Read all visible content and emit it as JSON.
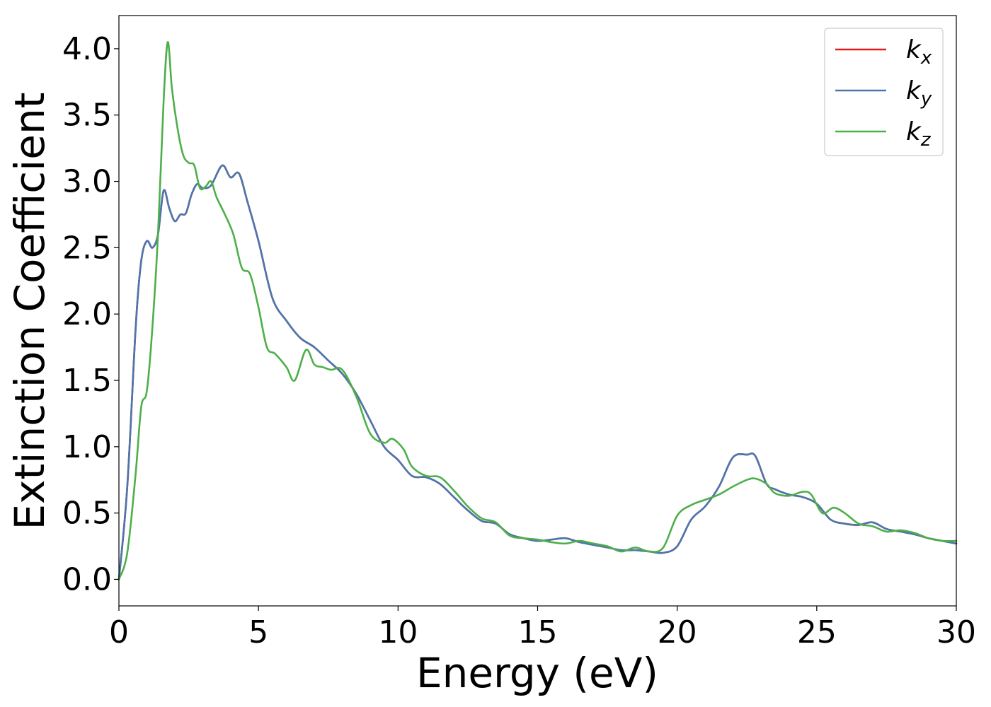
{
  "chart_data": {
    "type": "line",
    "title": "",
    "xlabel": "Energy (eV)",
    "ylabel": "Extinction Coefficient",
    "xlim": [
      0,
      30
    ],
    "ylim": [
      -0.2,
      4.25
    ],
    "xticks": [
      0,
      5,
      10,
      15,
      20,
      25,
      30
    ],
    "xtick_labels": [
      "0",
      "5",
      "10",
      "15",
      "20",
      "25",
      "30"
    ],
    "yticks": [
      0.0,
      0.5,
      1.0,
      1.5,
      2.0,
      2.5,
      3.0,
      3.5,
      4.0
    ],
    "ytick_labels": [
      "0.0",
      "0.5",
      "1.0",
      "1.5",
      "2.0",
      "2.5",
      "3.0",
      "3.5",
      "4.0"
    ],
    "grid": false,
    "legend_position": "top-right",
    "series": [
      {
        "name": "k",
        "subscript": "x",
        "color": "#e41a1c",
        "x": [
          0,
          0.3,
          0.6,
          0.8,
          1.0,
          1.2,
          1.4,
          1.6,
          1.8,
          2.0,
          2.2,
          2.4,
          2.6,
          2.8,
          3.0,
          3.3,
          3.7,
          4.0,
          4.3,
          4.6,
          5.0,
          5.5,
          6.0,
          6.5,
          7.0,
          7.5,
          8.0,
          8.5,
          9.0,
          9.5,
          10.0,
          10.5,
          11.0,
          11.5,
          12.0,
          12.5,
          13.0,
          13.5,
          14.0,
          14.5,
          15.0,
          15.5,
          16.0,
          16.5,
          17.0,
          17.5,
          18.0,
          18.5,
          19.0,
          19.5,
          20.0,
          20.5,
          21.0,
          21.5,
          22.0,
          22.5,
          22.8,
          23.2,
          23.5,
          24.0,
          24.5,
          25.0,
          25.5,
          26.0,
          26.5,
          27.0,
          27.5,
          28.0,
          28.5,
          29.0,
          29.5,
          30.0
        ],
        "y": [
          0.0,
          0.7,
          1.9,
          2.4,
          2.55,
          2.5,
          2.6,
          2.93,
          2.8,
          2.7,
          2.75,
          2.76,
          2.9,
          2.98,
          2.95,
          2.97,
          3.12,
          3.03,
          3.06,
          2.85,
          2.55,
          2.12,
          1.95,
          1.82,
          1.75,
          1.65,
          1.55,
          1.4,
          1.2,
          1.0,
          0.9,
          0.78,
          0.77,
          0.72,
          0.62,
          0.52,
          0.44,
          0.42,
          0.34,
          0.31,
          0.29,
          0.3,
          0.31,
          0.28,
          0.26,
          0.24,
          0.22,
          0.22,
          0.21,
          0.2,
          0.25,
          0.45,
          0.55,
          0.7,
          0.92,
          0.94,
          0.93,
          0.72,
          0.68,
          0.64,
          0.62,
          0.57,
          0.45,
          0.42,
          0.41,
          0.43,
          0.38,
          0.36,
          0.34,
          0.31,
          0.29,
          0.27
        ]
      },
      {
        "name": "k",
        "subscript": "y",
        "color": "#4a77ad",
        "x": [
          0,
          0.3,
          0.6,
          0.8,
          1.0,
          1.2,
          1.4,
          1.6,
          1.8,
          2.0,
          2.2,
          2.4,
          2.6,
          2.8,
          3.0,
          3.3,
          3.7,
          4.0,
          4.3,
          4.6,
          5.0,
          5.5,
          6.0,
          6.5,
          7.0,
          7.5,
          8.0,
          8.5,
          9.0,
          9.5,
          10.0,
          10.5,
          11.0,
          11.5,
          12.0,
          12.5,
          13.0,
          13.5,
          14.0,
          14.5,
          15.0,
          15.5,
          16.0,
          16.5,
          17.0,
          17.5,
          18.0,
          18.5,
          19.0,
          19.5,
          20.0,
          20.5,
          21.0,
          21.5,
          22.0,
          22.5,
          22.8,
          23.2,
          23.5,
          24.0,
          24.5,
          25.0,
          25.5,
          26.0,
          26.5,
          27.0,
          27.5,
          28.0,
          28.5,
          29.0,
          29.5,
          30.0
        ],
        "y": [
          0.0,
          0.7,
          1.9,
          2.4,
          2.55,
          2.5,
          2.6,
          2.93,
          2.8,
          2.7,
          2.75,
          2.76,
          2.9,
          2.98,
          2.95,
          2.97,
          3.12,
          3.03,
          3.06,
          2.85,
          2.55,
          2.12,
          1.95,
          1.82,
          1.75,
          1.65,
          1.55,
          1.4,
          1.2,
          1.0,
          0.9,
          0.78,
          0.77,
          0.72,
          0.62,
          0.52,
          0.44,
          0.42,
          0.34,
          0.31,
          0.29,
          0.3,
          0.31,
          0.28,
          0.26,
          0.24,
          0.22,
          0.22,
          0.21,
          0.2,
          0.25,
          0.45,
          0.55,
          0.7,
          0.92,
          0.94,
          0.93,
          0.72,
          0.68,
          0.64,
          0.62,
          0.57,
          0.45,
          0.42,
          0.41,
          0.43,
          0.38,
          0.36,
          0.34,
          0.31,
          0.29,
          0.27
        ]
      },
      {
        "name": "k",
        "subscript": "z",
        "color": "#4daf4a",
        "x": [
          0,
          0.3,
          0.6,
          0.8,
          1.0,
          1.2,
          1.4,
          1.6,
          1.75,
          1.9,
          2.1,
          2.3,
          2.5,
          2.7,
          2.9,
          3.1,
          3.3,
          3.5,
          3.8,
          4.1,
          4.4,
          4.7,
          5.0,
          5.3,
          5.6,
          6.0,
          6.3,
          6.7,
          7.0,
          7.3,
          7.6,
          8.0,
          8.5,
          9.0,
          9.5,
          9.8,
          10.2,
          10.5,
          11.0,
          11.5,
          12.0,
          12.5,
          13.0,
          13.5,
          14.0,
          14.5,
          15.0,
          15.5,
          16.0,
          16.5,
          17.0,
          17.5,
          18.0,
          18.5,
          19.0,
          19.5,
          20.0,
          20.5,
          21.0,
          21.5,
          22.0,
          22.5,
          22.8,
          23.2,
          23.5,
          24.0,
          24.5,
          24.8,
          25.2,
          25.6,
          26.0,
          26.5,
          27.0,
          27.5,
          28.0,
          28.5,
          29.0,
          29.5,
          30.0
        ],
        "y": [
          0.0,
          0.2,
          0.8,
          1.3,
          1.42,
          1.9,
          2.6,
          3.6,
          4.05,
          3.7,
          3.4,
          3.2,
          3.14,
          3.12,
          2.95,
          2.96,
          3.0,
          2.88,
          2.75,
          2.6,
          2.35,
          2.3,
          2.05,
          1.75,
          1.7,
          1.6,
          1.5,
          1.73,
          1.62,
          1.6,
          1.58,
          1.58,
          1.38,
          1.1,
          1.03,
          1.06,
          0.98,
          0.85,
          0.78,
          0.77,
          0.67,
          0.55,
          0.46,
          0.43,
          0.33,
          0.31,
          0.3,
          0.28,
          0.27,
          0.29,
          0.27,
          0.25,
          0.21,
          0.24,
          0.21,
          0.24,
          0.48,
          0.56,
          0.6,
          0.64,
          0.7,
          0.75,
          0.76,
          0.72,
          0.65,
          0.63,
          0.66,
          0.64,
          0.5,
          0.54,
          0.5,
          0.42,
          0.4,
          0.36,
          0.37,
          0.35,
          0.31,
          0.29,
          0.29
        ]
      }
    ]
  }
}
